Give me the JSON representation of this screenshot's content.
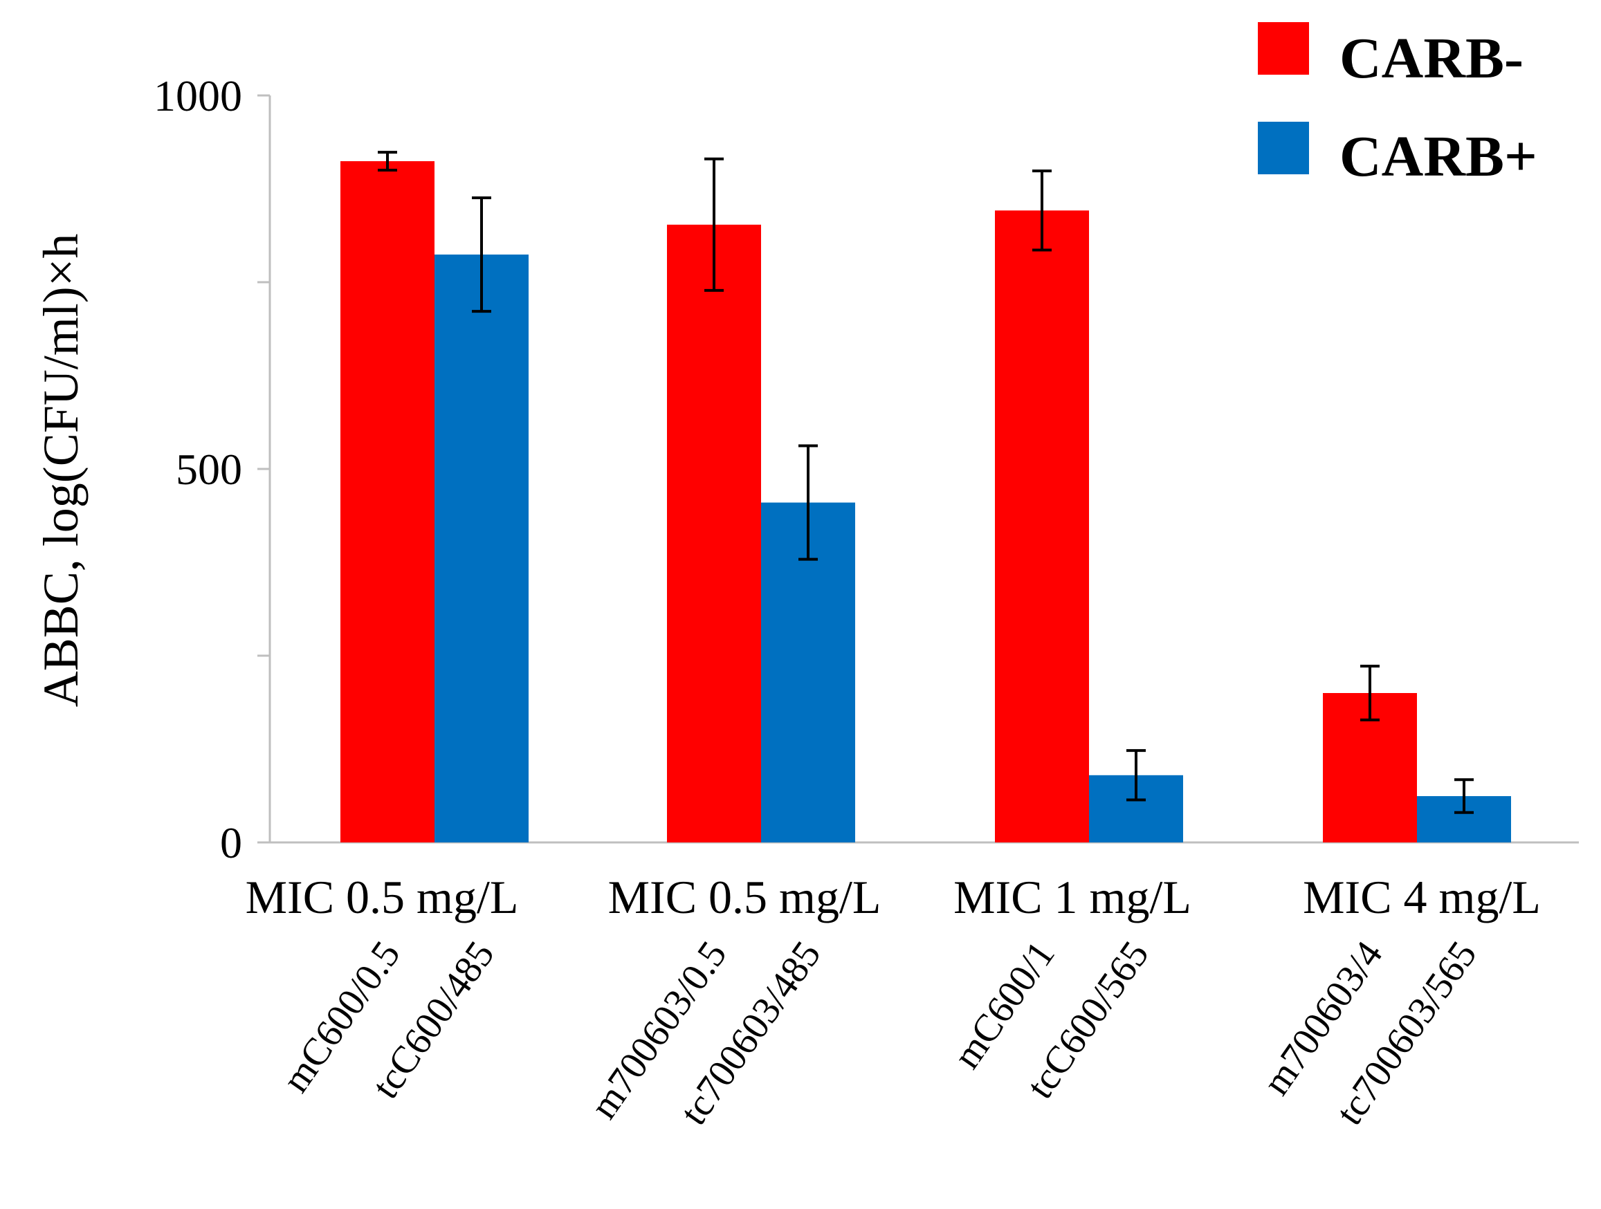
{
  "chart_data": {
    "type": "bar",
    "title": "",
    "xlabel": "",
    "ylabel": "ABBC, log(CFU/ml)×h",
    "ylim": [
      0,
      1000
    ],
    "y_ticks": [
      {
        "value": 0,
        "label": "0"
      },
      {
        "value": 250,
        "label": ""
      },
      {
        "value": 500,
        "label": "500"
      },
      {
        "value": 750,
        "label": ""
      },
      {
        "value": 1000,
        "label": "1000"
      }
    ],
    "legend_position": "top-right",
    "series": [
      {
        "name": "CARB-",
        "color": "#ff0000"
      },
      {
        "name": "CARB+",
        "color": "#0070c0"
      }
    ],
    "groups": [
      {
        "label": "MIC 0.5 mg/L",
        "bars": [
          {
            "label": "mC600/0.5",
            "series": 0,
            "value": 912,
            "err": 12
          },
          {
            "label": "tcC600/485",
            "series": 1,
            "value": 787,
            "err": 76
          }
        ]
      },
      {
        "label": "MIC 0.5 mg/L",
        "bars": [
          {
            "label": "m700603/0.5",
            "series": 0,
            "value": 827,
            "err": 88
          },
          {
            "label": "tc700603/485",
            "series": 1,
            "value": 455,
            "err": 76
          }
        ]
      },
      {
        "label": "MIC 1 mg/L",
        "bars": [
          {
            "label": "mC600/1",
            "series": 0,
            "value": 846,
            "err": 53
          },
          {
            "label": "tcC600/565",
            "series": 1,
            "value": 90,
            "err": 33
          }
        ]
      },
      {
        "label": "MIC 4 mg/L",
        "bars": [
          {
            "label": "m700603/4",
            "series": 0,
            "value": 200,
            "err": 36
          },
          {
            "label": "tc700603/565",
            "series": 1,
            "value": 62,
            "err": 22
          }
        ]
      }
    ]
  }
}
